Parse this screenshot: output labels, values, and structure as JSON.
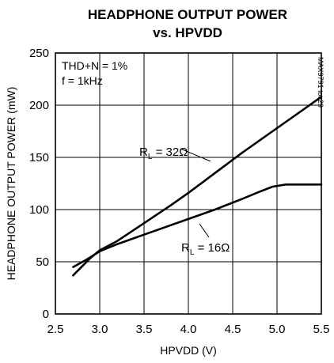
{
  "chart_data": {
    "type": "line",
    "title": "HEADPHONE OUTPUT POWER",
    "subtitle": "vs. HPVDD",
    "xlabel": "HPVDD (V)",
    "ylabel": "HEADPHONE OUTPUT POWER (mW)",
    "xlim": [
      2.5,
      5.5
    ],
    "ylim": [
      0,
      250
    ],
    "xticks": [
      "2.5",
      "3.0",
      "3.5",
      "4.0",
      "4.5",
      "5.0",
      "5.5"
    ],
    "yticks": [
      "0",
      "50",
      "100",
      "150",
      "200",
      "250"
    ],
    "grid": true,
    "conditions": [
      "THD+N = 1%",
      "f = 1kHz"
    ],
    "figure_code": "MAX9791 toc29",
    "series": [
      {
        "name": "RL = 32Ω",
        "label_main": "R",
        "label_sub": "L",
        "label_rest": " = 32Ω",
        "x": [
          2.7,
          2.9,
          3.0,
          3.2,
          3.5,
          3.8,
          4.0,
          4.3,
          4.6,
          5.0,
          5.3,
          5.5
        ],
        "y": [
          37,
          54,
          61,
          70,
          87,
          104,
          116,
          135,
          154,
          178,
          196,
          208
        ]
      },
      {
        "name": "RL = 16Ω",
        "label_main": "R",
        "label_sub": "L",
        "label_rest": " = 16Ω",
        "x": [
          2.7,
          2.85,
          3.0,
          3.2,
          3.5,
          3.8,
          4.0,
          4.3,
          4.6,
          4.8,
          4.95,
          5.1,
          5.3,
          5.5
        ],
        "y": [
          45,
          52,
          60,
          67,
          76,
          85,
          91,
          100,
          110,
          117,
          122,
          124,
          124,
          124
        ]
      }
    ]
  }
}
